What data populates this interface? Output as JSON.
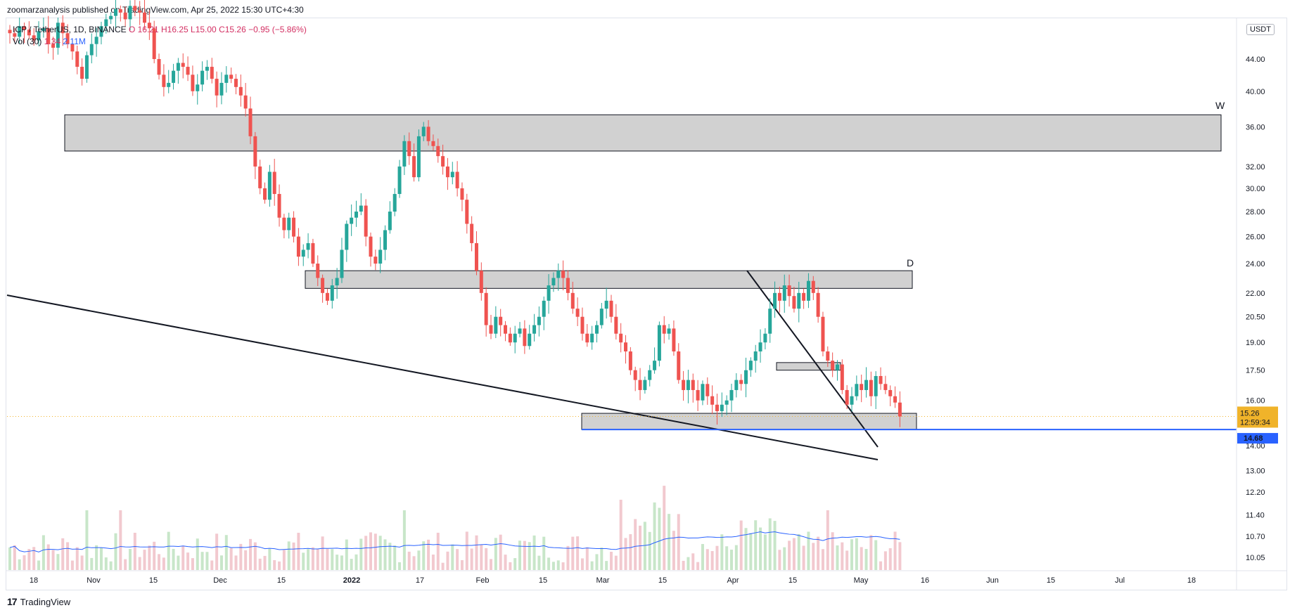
{
  "header": {
    "text": "zoomarzanalysis published on TradingView.com, Apr 25, 2022 15:30 UTC+4:30"
  },
  "legend": {
    "pair": "ICP / TetherUS, 1D, BINANCE",
    "ohlc": "O 16.21  H16.25  L15.00  C15.26  −0.95 (−5.86%)",
    "vol_label": "Vol (30)",
    "vol_a": "1.34",
    "vol_b": "2.11M"
  },
  "price_unit": "USDT",
  "footer": {
    "brand": "TradingView",
    "logo_mark": "17"
  },
  "colors": {
    "up": "#26a69a",
    "down": "#ef5350",
    "up_vol": "#c8e6c9",
    "down_vol": "#f2c9cf",
    "vol_ma": "#2962ff",
    "support_line": "#2962ff",
    "price_tag": "#f0b32a",
    "zone_fill": "#d1d1d1"
  },
  "chart_data": {
    "type": "candlestick",
    "symbol": "ICP / TetherUS",
    "interval": "1D",
    "y_scale": "log",
    "y_ticks": [
      44.0,
      40.0,
      36.0,
      32.0,
      30.0,
      28.0,
      26.0,
      24.0,
      22.0,
      20.5,
      19.0,
      17.5,
      16.0,
      14.0,
      13.0,
      12.2,
      11.4,
      10.7,
      10.05
    ],
    "x_ticks": [
      "18",
      "Nov",
      "15",
      "Dec",
      "15",
      "2022",
      "17",
      "Feb",
      "15",
      "Mar",
      "15",
      "Apr",
      "15",
      "May",
      "16",
      "Jun",
      "15",
      "Jul",
      "18"
    ],
    "current_price": "15.26",
    "countdown": "12:59:34",
    "support_price": "14.68",
    "zone_labels": [
      "W",
      "D"
    ],
    "closes": [
      47.5,
      47.0,
      48.5,
      48.0,
      47.2,
      46.5,
      47.8,
      48.2,
      46.0,
      45.5,
      49.0,
      47.5,
      46.0,
      45.0,
      43.0,
      41.5,
      44.5,
      46.0,
      47.0,
      48.5,
      49.5,
      50.0,
      51.0,
      50.5,
      49.5,
      51.5,
      50.8,
      50.5,
      49.0,
      48.2,
      44.0,
      42.0,
      40.5,
      41.0,
      42.5,
      43.5,
      43.0,
      42.0,
      40.0,
      40.8,
      42.5,
      43.0,
      41.5,
      39.5,
      41.0,
      42.0,
      41.5,
      40.5,
      39.5,
      38.0,
      35.0,
      32.0,
      30.0,
      29.0,
      31.5,
      29.5,
      27.5,
      26.5,
      27.5,
      26.0,
      24.5,
      25.0,
      25.5,
      24.0,
      23.0,
      22.0,
      21.5,
      22.5,
      23.0,
      25.0,
      27.0,
      27.5,
      28.0,
      28.5,
      26.0,
      24.5,
      24.0,
      25.0,
      26.5,
      28.0,
      29.5,
      32.0,
      34.5,
      33.0,
      31.0,
      35.0,
      36.0,
      34.5,
      34.0,
      33.0,
      32.0,
      31.0,
      31.5,
      30.0,
      29.0,
      27.0,
      25.5,
      23.5,
      22.0,
      20.0,
      19.5,
      20.5,
      20.0,
      19.5,
      19.0,
      19.5,
      19.8,
      18.8,
      19.5,
      20.0,
      20.5,
      21.5,
      22.5,
      23.0,
      23.5,
      23.0,
      22.0,
      21.0,
      20.5,
      19.5,
      19.0,
      19.5,
      20.0,
      21.0,
      21.5,
      20.5,
      19.5,
      19.0,
      18.5,
      17.5,
      17.0,
      16.5,
      17.0,
      17.5,
      18.0,
      20.0,
      19.5,
      19.8,
      18.5,
      17.0,
      16.5,
      17.0,
      16.5,
      16.0,
      16.8,
      16.2,
      15.8,
      15.5,
      15.8,
      16.0,
      16.5,
      17.0,
      16.8,
      17.5,
      18.0,
      18.5,
      19.0,
      19.5,
      21.0,
      22.0,
      21.5,
      22.5,
      21.8,
      21.0,
      22.0,
      21.5,
      22.8,
      22.0,
      20.5,
      18.5,
      18.0,
      17.5,
      17.8,
      16.5,
      15.8,
      16.2,
      16.8,
      16.5,
      17.0,
      16.2,
      17.2,
      16.8,
      16.5,
      16.2,
      15.9,
      15.26
    ],
    "volume_closes_note": "volume bars and 30-period volume MA shown beneath price",
    "zones": [
      {
        "name": "W",
        "from": 33.5,
        "to": 37.3
      },
      {
        "name": "D",
        "from": 22.3,
        "to": 23.5
      },
      {
        "name": "",
        "from": 17.5,
        "to": 17.9
      },
      {
        "name": "",
        "from": 14.68,
        "to": 15.4
      }
    ]
  }
}
